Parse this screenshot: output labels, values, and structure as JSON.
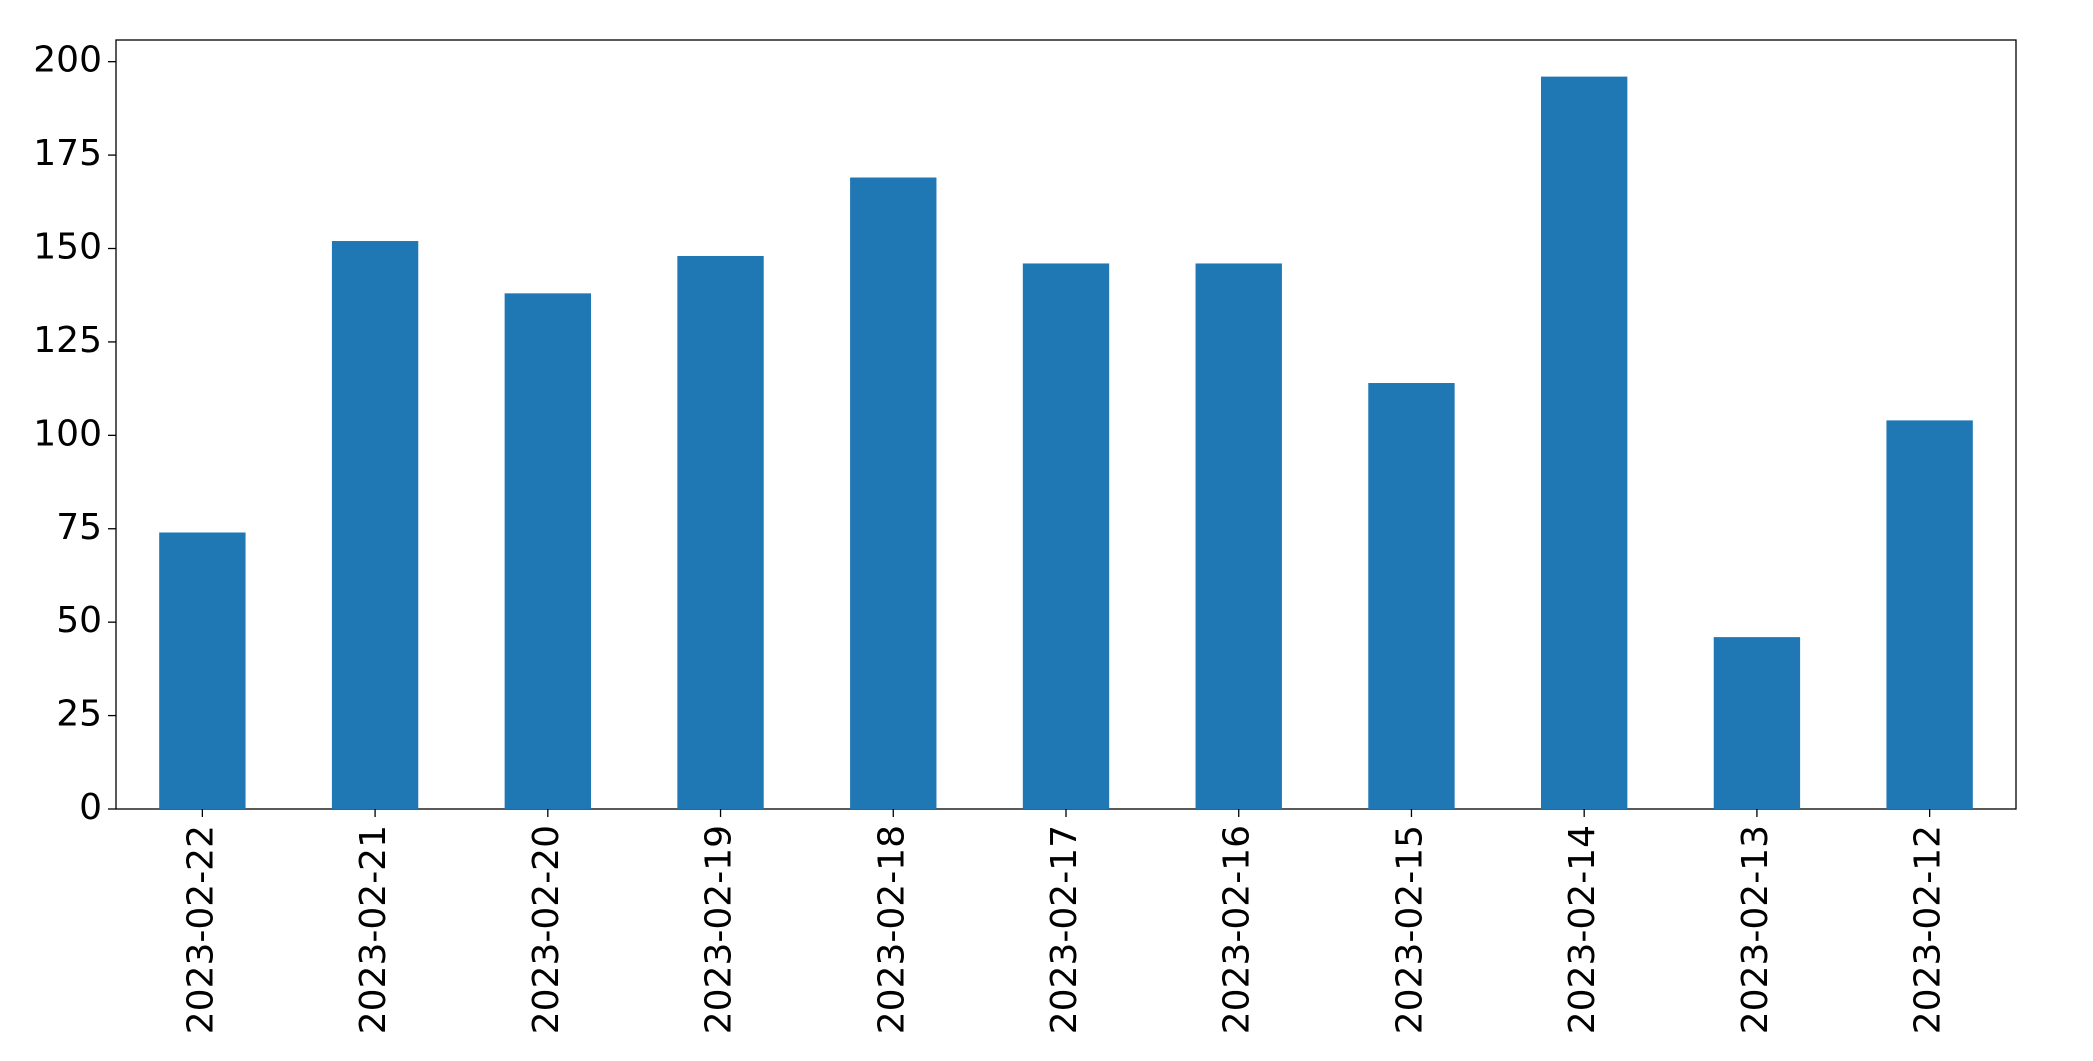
{
  "chart_data": {
    "type": "bar",
    "categories": [
      "2023-02-22",
      "2023-02-21",
      "2023-02-20",
      "2023-02-19",
      "2023-02-18",
      "2023-02-17",
      "2023-02-16",
      "2023-02-15",
      "2023-02-14",
      "2023-02-13",
      "2023-02-12"
    ],
    "values": [
      74,
      152,
      138,
      148,
      169,
      146,
      146,
      114,
      196,
      46,
      104
    ],
    "color": "#1f77b4",
    "ylim": [
      0,
      205.8
    ],
    "yticks": [
      0,
      25,
      50,
      75,
      100,
      125,
      150,
      175,
      200
    ],
    "grid": false
  }
}
